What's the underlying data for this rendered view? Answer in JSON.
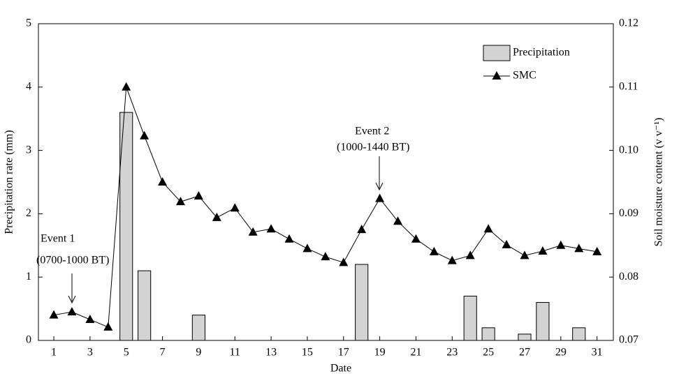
{
  "chart_data": {
    "type": "bar-line",
    "xlabel": "Date",
    "ylabel": "Precipitation rate (mm)",
    "y2label": "Soil moisture content (v v⁻¹)",
    "xlim": [
      0.15,
      31.9
    ],
    "xticks": [
      1,
      3,
      5,
      7,
      9,
      11,
      13,
      15,
      17,
      19,
      21,
      23,
      25,
      27,
      29,
      31
    ],
    "ylim": [
      0,
      5
    ],
    "yticks": [
      0,
      1,
      2,
      3,
      4,
      5
    ],
    "y2lim": [
      0.07,
      0.12
    ],
    "y2ticks": [
      0.07,
      0.08,
      0.09,
      {
        "value": 0.1,
        "label": "0.10"
      },
      0.11,
      0.12
    ],
    "legend": "upper right",
    "series": [
      {
        "name": "Precipitation",
        "type": "bar",
        "color": "#d3d3d3",
        "x": [
          5,
          6,
          9,
          18,
          24,
          25,
          27,
          28,
          30
        ],
        "values": [
          3.6,
          1.1,
          0.4,
          1.2,
          0.7,
          0.2,
          0.1,
          0.6,
          0.2
        ]
      },
      {
        "name": "SMC",
        "type": "line",
        "color": "#000000",
        "axis": "y2",
        "x": [
          1,
          2,
          3,
          4,
          5,
          6,
          7,
          8,
          9,
          10,
          11,
          12,
          13,
          14,
          15,
          16,
          17,
          18,
          19,
          20,
          21,
          22,
          23,
          24,
          25,
          26,
          27,
          28,
          29,
          30,
          31
        ],
        "values": [
          0.074,
          0.0745,
          0.0733,
          0.0721,
          0.11,
          0.1023,
          0.095,
          0.0919,
          0.0928,
          0.0894,
          0.0909,
          0.0871,
          0.0876,
          0.086,
          0.0845,
          0.0832,
          0.0823,
          0.0875,
          0.0924,
          0.0888,
          0.086,
          0.084,
          0.0826,
          0.0834,
          0.0876,
          0.0851,
          0.0834,
          0.0841,
          0.085,
          0.0845,
          0.084
        ]
      }
    ],
    "annotations": [
      "Event 1",
      "(0700-1000 BT)",
      "Event 2",
      "(1000-1440 BT)"
    ]
  }
}
